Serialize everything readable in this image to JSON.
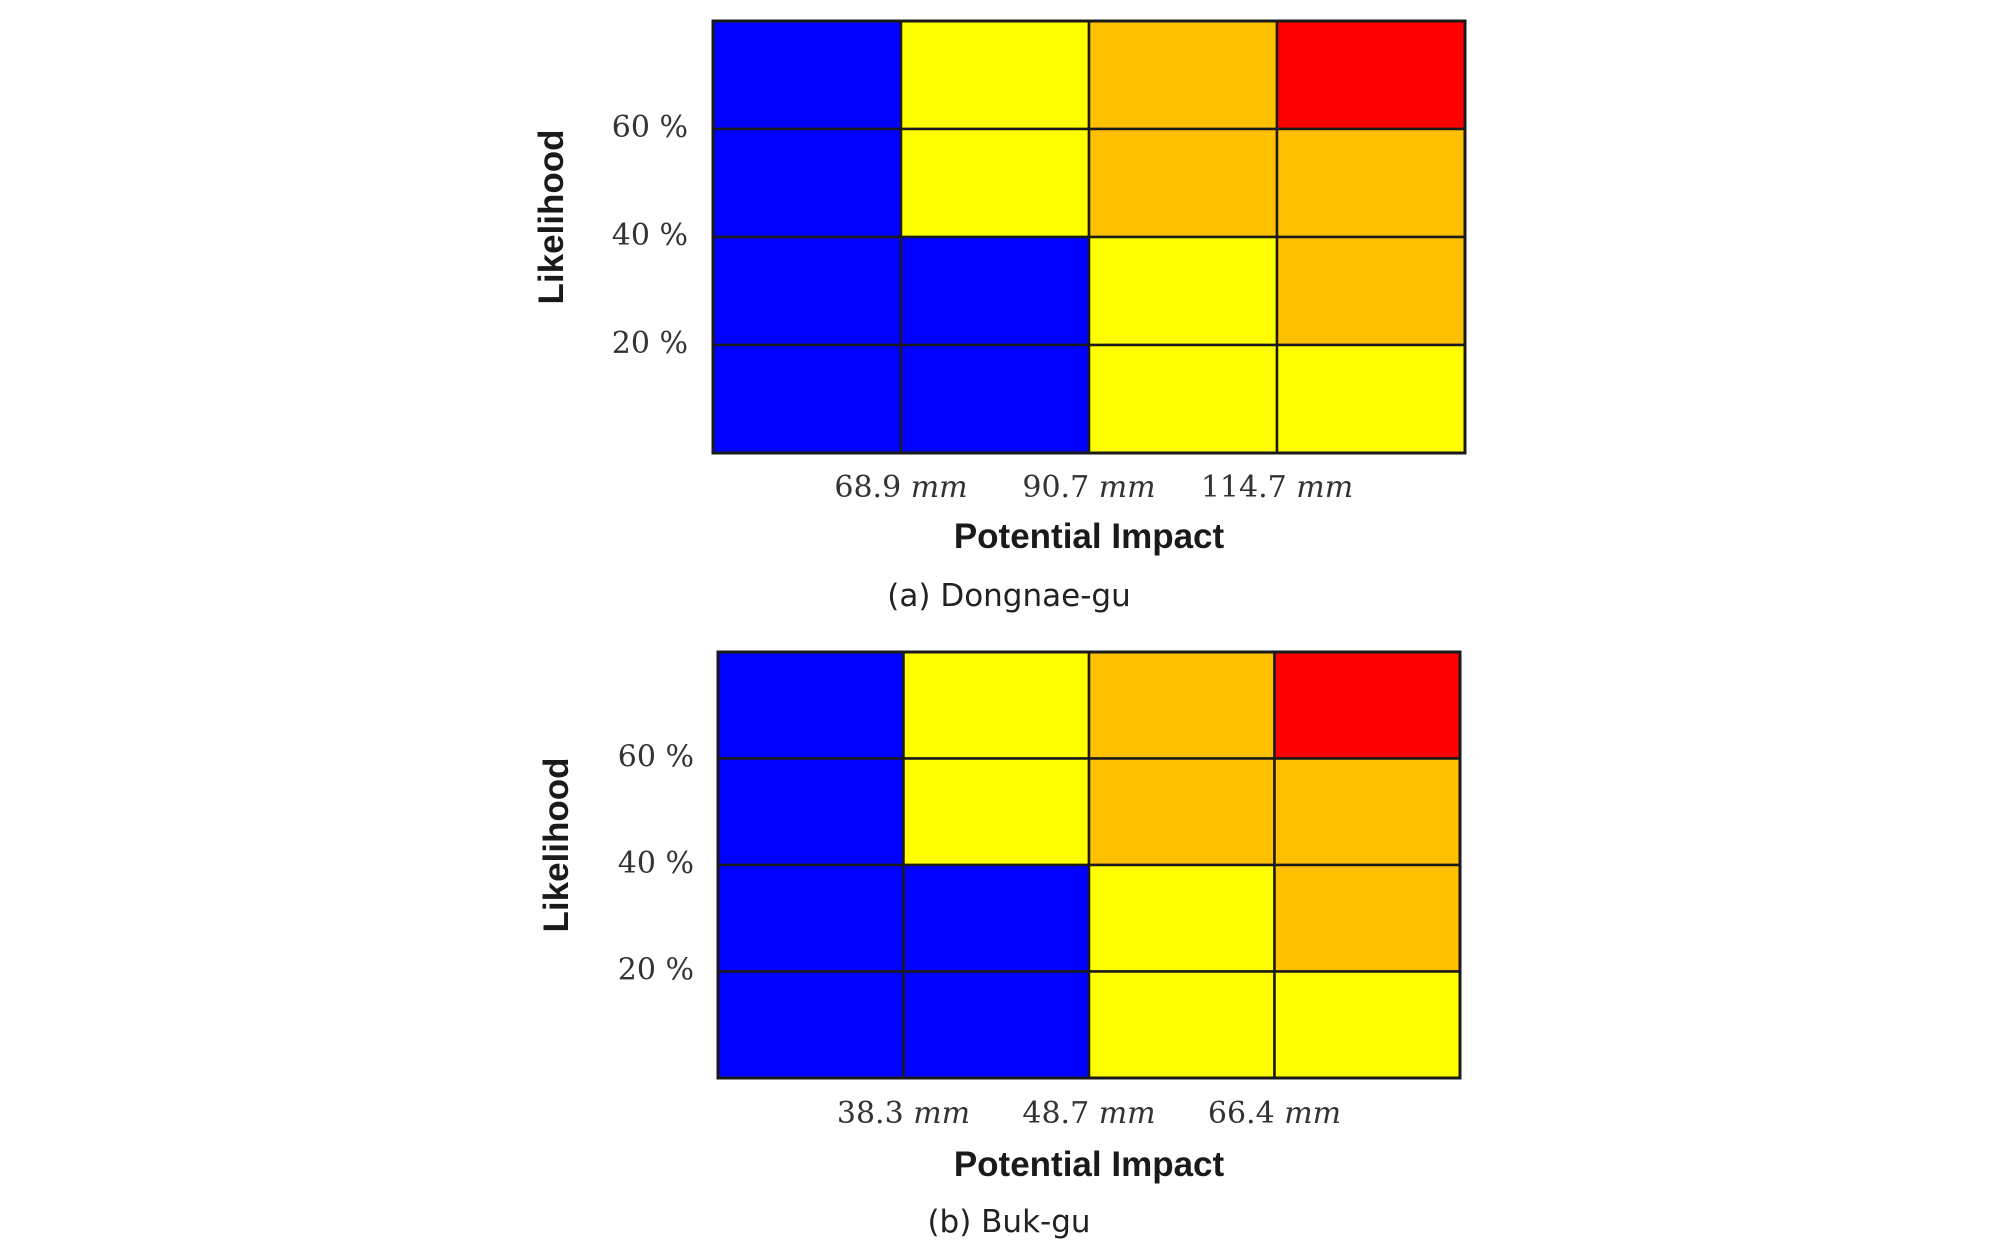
{
  "colors": {
    "low": "#0000ff",
    "medium": "#ffff00",
    "high": "#ffc000",
    "extreme": "#ff0000"
  },
  "chart_data": [
    {
      "type": "heatmap",
      "caption": "(a) Dongnae-gu",
      "xlabel": "Potential Impact",
      "ylabel": "Likelihood",
      "x_ticks": [
        {
          "value": "68.9",
          "unit": "mm"
        },
        {
          "value": "90.7",
          "unit": "mm"
        },
        {
          "value": "114.7",
          "unit": "mm"
        }
      ],
      "y_ticks": [
        "20 %",
        "40 %",
        "60 %"
      ],
      "rows_top_to_bottom": [
        [
          "low",
          "medium",
          "high",
          "extreme"
        ],
        [
          "low",
          "medium",
          "high",
          "high"
        ],
        [
          "low",
          "low",
          "medium",
          "high"
        ],
        [
          "low",
          "low",
          "medium",
          "medium"
        ]
      ]
    },
    {
      "type": "heatmap",
      "caption": "(b) Buk-gu",
      "xlabel": "Potential Impact",
      "ylabel": "Likelihood",
      "x_ticks": [
        {
          "value": "38.3",
          "unit": "mm"
        },
        {
          "value": "48.7",
          "unit": "mm"
        },
        {
          "value": "66.4",
          "unit": "mm"
        }
      ],
      "y_ticks": [
        "20 %",
        "40 %",
        "60 %"
      ],
      "rows_top_to_bottom": [
        [
          "low",
          "medium",
          "high",
          "extreme"
        ],
        [
          "low",
          "medium",
          "high",
          "high"
        ],
        [
          "low",
          "low",
          "medium",
          "high"
        ],
        [
          "low",
          "low",
          "medium",
          "medium"
        ]
      ]
    }
  ]
}
